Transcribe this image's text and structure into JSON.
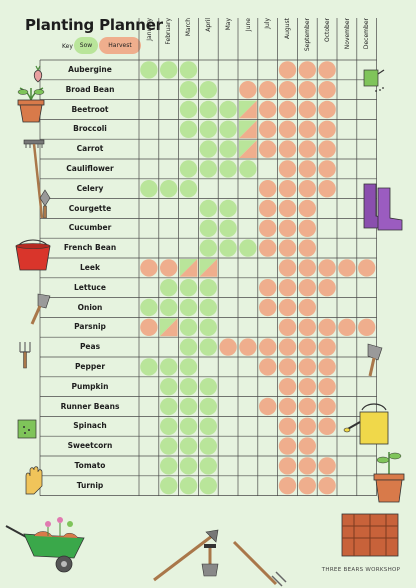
{
  "title": "Planting Planner",
  "key": {
    "label": "Key",
    "sow": "Sow",
    "harvest": "Harvest"
  },
  "colors": {
    "sow": "#b9e59a",
    "harvest": "#efae8d",
    "grid": "#4a4a4a",
    "background": "#e6f3df"
  },
  "months": [
    "January",
    "February",
    "March",
    "April",
    "May",
    "June",
    "July",
    "August",
    "September",
    "October",
    "November",
    "December"
  ],
  "vegetables": [
    {
      "name": "Aubergine",
      "cells": [
        "S",
        "S",
        "S",
        "",
        "",
        "",
        "",
        "H",
        "H",
        "H",
        "",
        ""
      ]
    },
    {
      "name": "Broad Bean",
      "cells": [
        "",
        "",
        "S",
        "S",
        "",
        "H",
        "H",
        "H",
        "H",
        "H",
        "",
        ""
      ]
    },
    {
      "name": "Beetroot",
      "cells": [
        "",
        "",
        "S",
        "S",
        "S",
        "B",
        "H",
        "H",
        "H",
        "H",
        "",
        ""
      ]
    },
    {
      "name": "Broccoli",
      "cells": [
        "",
        "",
        "S",
        "S",
        "S",
        "B",
        "H",
        "H",
        "H",
        "H",
        "",
        ""
      ]
    },
    {
      "name": "Carrot",
      "cells": [
        "",
        "",
        "",
        "S",
        "S",
        "B",
        "H",
        "H",
        "H",
        "H",
        "",
        ""
      ]
    },
    {
      "name": "Cauliflower",
      "cells": [
        "",
        "",
        "S",
        "S",
        "S",
        "S",
        "",
        "H",
        "H",
        "H",
        "",
        ""
      ]
    },
    {
      "name": "Celery",
      "cells": [
        "S",
        "S",
        "S",
        "",
        "",
        "",
        "H",
        "H",
        "H",
        "H",
        "",
        ""
      ]
    },
    {
      "name": "Courgette",
      "cells": [
        "",
        "",
        "",
        "S",
        "S",
        "",
        "H",
        "H",
        "H",
        "",
        "",
        ""
      ]
    },
    {
      "name": "Cucumber",
      "cells": [
        "",
        "",
        "",
        "S",
        "S",
        "",
        "H",
        "H",
        "H",
        "",
        "",
        ""
      ]
    },
    {
      "name": "French Bean",
      "cells": [
        "",
        "",
        "",
        "S",
        "S",
        "S",
        "H",
        "H",
        "H",
        "",
        "",
        ""
      ]
    },
    {
      "name": "Leek",
      "cells": [
        "H",
        "H",
        "B",
        "B",
        "",
        "",
        "",
        "H",
        "H",
        "H",
        "H",
        "H"
      ]
    },
    {
      "name": "Lettuce",
      "cells": [
        "",
        "S",
        "S",
        "S",
        "",
        "",
        "H",
        "H",
        "H",
        "H",
        "",
        ""
      ]
    },
    {
      "name": "Onion",
      "cells": [
        "S",
        "S",
        "S",
        "S",
        "",
        "",
        "H",
        "H",
        "H",
        "",
        "",
        ""
      ]
    },
    {
      "name": "Parsnip",
      "cells": [
        "H",
        "B",
        "S",
        "S",
        "",
        "",
        "",
        "H",
        "H",
        "H",
        "H",
        "H"
      ]
    },
    {
      "name": "Peas",
      "cells": [
        "",
        "",
        "S",
        "S",
        "H",
        "H",
        "H",
        "H",
        "H",
        "H",
        "",
        ""
      ]
    },
    {
      "name": "Pepper",
      "cells": [
        "S",
        "S",
        "S",
        "",
        "",
        "",
        "H",
        "H",
        "H",
        "H",
        "",
        ""
      ]
    },
    {
      "name": "Pumpkin",
      "cells": [
        "",
        "S",
        "S",
        "S",
        "",
        "",
        "",
        "H",
        "H",
        "H",
        "",
        ""
      ]
    },
    {
      "name": "Runner Beans",
      "cells": [
        "",
        "S",
        "S",
        "S",
        "",
        "",
        "H",
        "H",
        "H",
        "H",
        "",
        ""
      ]
    },
    {
      "name": "Spinach",
      "cells": [
        "",
        "S",
        "S",
        "S",
        "",
        "",
        "",
        "H",
        "H",
        "H",
        "",
        ""
      ]
    },
    {
      "name": "Sweetcorn",
      "cells": [
        "",
        "S",
        "S",
        "S",
        "",
        "",
        "",
        "H",
        "H",
        "",
        "",
        ""
      ]
    },
    {
      "name": "Tomato",
      "cells": [
        "",
        "S",
        "S",
        "S",
        "",
        "",
        "",
        "H",
        "H",
        "H",
        "",
        ""
      ]
    },
    {
      "name": "Turnip",
      "cells": [
        "",
        "S",
        "S",
        "S",
        "",
        "",
        "",
        "H",
        "H",
        "H",
        "",
        ""
      ]
    }
  ],
  "footer": "THREE BEARS WORKSHOP",
  "decorations": [
    "radish-icon",
    "plant-pot-icon",
    "rake-icon",
    "trowel-icon",
    "bucket-icon",
    "small-trowel-icon",
    "seed-packet-icon",
    "garden-glove-icon",
    "wheelbarrow-icon",
    "hoe-icon",
    "fork-icon",
    "watering-can-top-icon",
    "wellington-boots-icon",
    "hand-trowel-right-icon",
    "watering-can-icon",
    "potted-seedling-icon",
    "seed-tray-icon"
  ]
}
